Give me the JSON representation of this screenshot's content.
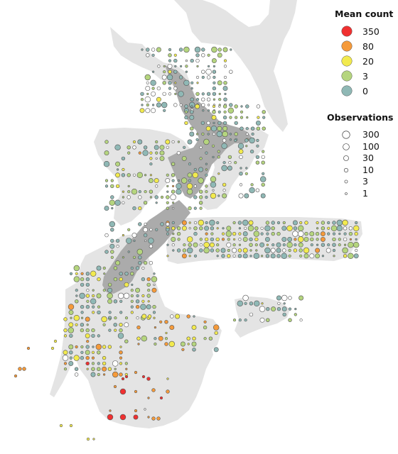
{
  "legend": {
    "mean_count": {
      "title": "Mean count",
      "items": [
        {
          "label": "350",
          "color": "#f03030"
        },
        {
          "label": "80",
          "color": "#f59a3a"
        },
        {
          "label": "20",
          "color": "#f2ea4e"
        },
        {
          "label": "3",
          "color": "#b5d57e"
        },
        {
          "label": "0",
          "color": "#8fb8b5"
        }
      ]
    },
    "observations": {
      "title": "Observations",
      "items": [
        {
          "label": "300",
          "size": 300
        },
        {
          "label": "100",
          "size": 100
        },
        {
          "label": "30",
          "size": 30
        },
        {
          "label": "10",
          "size": 10
        },
        {
          "label": "3",
          "size": 3
        },
        {
          "label": "1",
          "size": 1
        }
      ]
    }
  },
  "colors": {
    "ocean": "#ffffff",
    "land_light": "#e4e4e4",
    "land_dark": "#ababab",
    "marker_stroke": "#555555",
    "empty_marker_fill": "#ffffff"
  },
  "survey_grid_note": "",
  "map_areas": [
    {
      "name": "north-island",
      "shade": "light"
    },
    {
      "name": "south-island",
      "shade": "dark"
    },
    {
      "name": "chatham-rise-land",
      "shade": "light"
    },
    {
      "name": "southern-plateau",
      "shade": "light"
    },
    {
      "name": "chatham-islands",
      "shade": "light"
    }
  ]
}
